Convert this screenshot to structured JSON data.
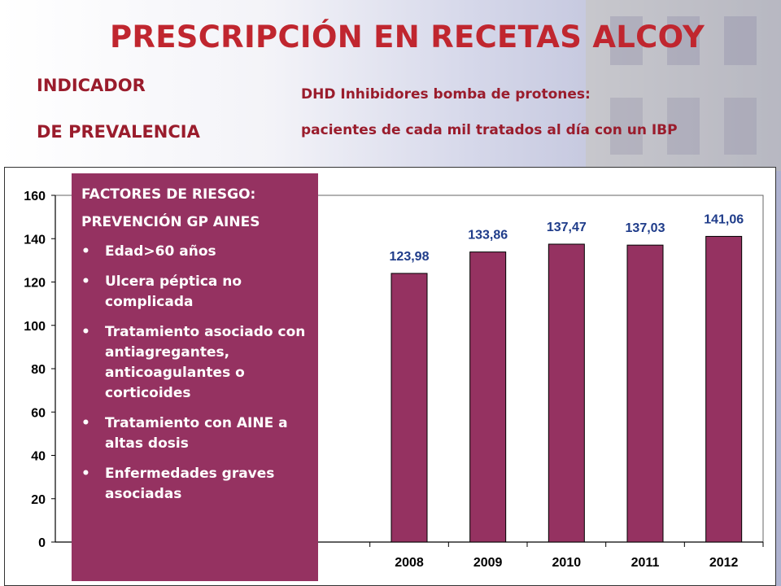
{
  "title": "PRESCRIPCIÓN EN RECETAS ALCOY",
  "indicator": {
    "line1": "INDICADOR",
    "line2": "DE PREVALENCIA"
  },
  "subtitle": {
    "line1": "DHD Inhibidores bomba de protones:",
    "line2": "pacientes de cada mil tratados al día con un IBP"
  },
  "colors": {
    "bar": "#953261",
    "title": "#c0262f",
    "text": "#9a1c2c",
    "panel": "#953261"
  },
  "risk_panel": {
    "heading1": "FACTORES DE RIESGO:",
    "heading2": "PREVENCIÓN GP AINES",
    "bullet": "•",
    "items": [
      "Edad>60 años",
      "Ulcera péptica no complicada",
      "Tratamiento asociado con antiagregantes, anticoagulantes o corticoides",
      "Tratamiento con AINE a altas dosis",
      "Enfermedades graves asociadas"
    ]
  },
  "chart_data": {
    "type": "bar",
    "categories": [
      "2008",
      "2009",
      "2010",
      "2011",
      "2012"
    ],
    "values": [
      123.98,
      133.86,
      137.47,
      137.03,
      141.06
    ],
    "data_labels": [
      "123,98",
      "133,86",
      "137,47",
      "137,03",
      "141,06"
    ],
    "yticks": [
      "0",
      "20",
      "40",
      "60",
      "80",
      "100",
      "120",
      "140",
      "160"
    ],
    "ylim": [
      0,
      160
    ],
    "grid": false
  }
}
